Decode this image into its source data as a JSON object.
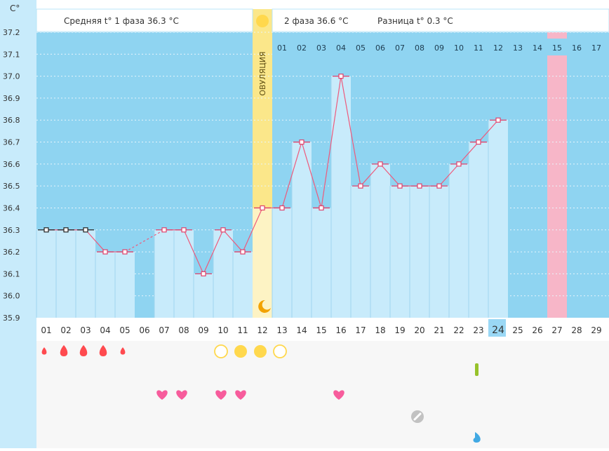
{
  "header": {
    "y_unit": "C°",
    "phase1_text": "Средняя t° 1 фаза 36.3 °C",
    "phase2_text": "2 фаза 36.6 °C",
    "diff_text": "Разница t° 0.3 °C"
  },
  "ovulation_label": "ОВУЛЯЦИЯ",
  "colors": {
    "sky": "#8fd4f1",
    "bar": "#c8ebfb",
    "bar_line": "#9fd6ef",
    "grid": "#e8f5fc",
    "ovulation_col": "#fbe78a",
    "ovulation_low": "#fdf3c4",
    "highlight_col": "#f7b6c8",
    "line": "#ee5a7c",
    "marker": "#e0406a",
    "left_panel": "#c8ebfb",
    "sun": "#ffd84d",
    "blood": "#ff4a4f",
    "heart": "#f75c9c",
    "green_mark": "#97c22b",
    "drop_blue": "#41a9e3",
    "selected_day": "#9ad8f5"
  },
  "chart_data": {
    "type": "line",
    "ylim": [
      35.9,
      37.2
    ],
    "y_ticks": [
      "35.9",
      "36.0",
      "36.1",
      "36.2",
      "36.3",
      "36.4",
      "36.5",
      "36.6",
      "36.7",
      "36.8",
      "36.9",
      "37.0",
      "37.1",
      "37.2"
    ],
    "x": [
      "01",
      "02",
      "03",
      "04",
      "05",
      "06",
      "07",
      "08",
      "09",
      "10",
      "11",
      "12",
      "13",
      "14",
      "15",
      "16",
      "17",
      "18",
      "19",
      "20",
      "21",
      "22",
      "23",
      "24",
      "25",
      "26",
      "27",
      "28",
      "29"
    ],
    "phase2_days": [
      "01",
      "02",
      "03",
      "04",
      "05",
      "06",
      "07",
      "08",
      "09",
      "10",
      "11",
      "12",
      "13",
      "14",
      "15",
      "16",
      "17"
    ],
    "series": [
      {
        "values": [
          36.3,
          36.3,
          36.3,
          36.2,
          36.2,
          null,
          36.3,
          36.3,
          36.1,
          36.3,
          36.2,
          36.4,
          36.4,
          36.7,
          36.4,
          37.0,
          36.5,
          36.6,
          36.5,
          36.5,
          36.5,
          36.6,
          36.7,
          36.8,
          null,
          null,
          null,
          null,
          null
        ]
      }
    ],
    "ovulation_day": "12",
    "highlighted_day": "27",
    "selected_day": "24",
    "grid": true
  },
  "symptom_rows": [
    {
      "icon": "blood-drop-icon",
      "items": [
        [
          "01",
          "small"
        ],
        [
          "02",
          "big"
        ],
        [
          "03",
          "big"
        ],
        [
          "04",
          "big"
        ],
        [
          "05",
          "small"
        ]
      ]
    },
    {
      "icon": "sun-circle-icon",
      "items": [
        [
          "10",
          "outline"
        ],
        [
          "11",
          "filled"
        ],
        [
          "12",
          "filled"
        ],
        [
          "13",
          "outline"
        ]
      ]
    },
    {
      "icon": "green-bar-icon",
      "items": [
        [
          "23",
          "bar"
        ]
      ]
    },
    {
      "icon": "heart-icon",
      "items": [
        [
          "07",
          "heart"
        ],
        [
          "08",
          "heart"
        ],
        [
          "10",
          "heart"
        ],
        [
          "11",
          "heart"
        ],
        [
          "16",
          "heart"
        ]
      ]
    },
    {
      "icon": "pill-icon",
      "items": [
        [
          "20",
          "pill"
        ]
      ]
    },
    {
      "icon": "blue-drop-icon",
      "items": [
        [
          "23",
          "drop"
        ]
      ]
    }
  ]
}
